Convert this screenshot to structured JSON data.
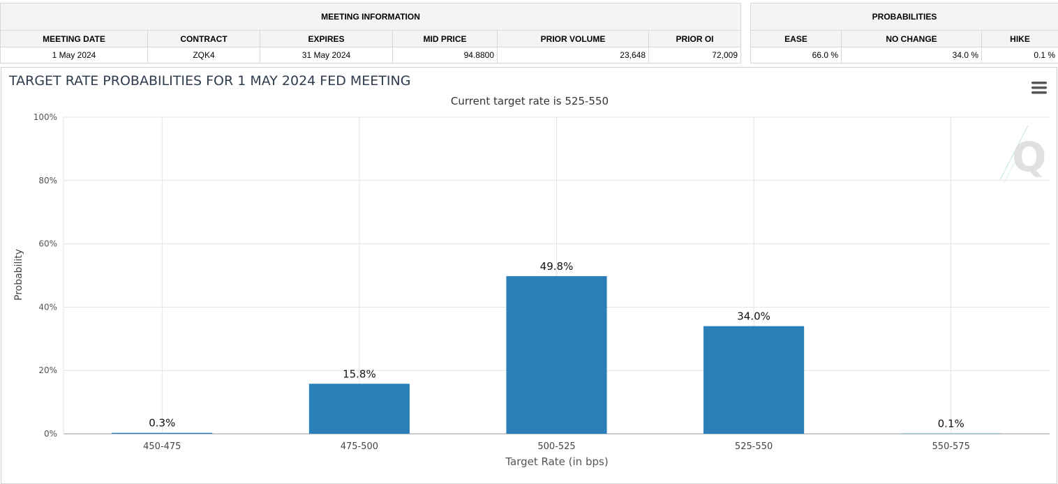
{
  "meeting_info": {
    "title": "MEETING INFORMATION",
    "columns": [
      "MEETING DATE",
      "CONTRACT",
      "EXPIRES",
      "MID PRICE",
      "PRIOR VOLUME",
      "PRIOR OI"
    ],
    "values": [
      "1 May 2024",
      "ZQK4",
      "31 May 2024",
      "94.8800",
      "23,648",
      "72,009"
    ]
  },
  "probabilities": {
    "title": "PROBABILITIES",
    "columns": [
      "EASE",
      "NO CHANGE",
      "HIKE"
    ],
    "values": [
      "66.0 %",
      "34.0 %",
      "0.1 %"
    ]
  },
  "menu_icon": "hamburger-menu-icon",
  "watermark_icon": "q-logo-icon",
  "chart_data": {
    "type": "bar",
    "title": "TARGET RATE PROBABILITIES FOR 1 MAY 2024 FED MEETING",
    "subtitle": "Current target rate is 525-550",
    "xlabel": "Target Rate (in bps)",
    "ylabel": "Probability",
    "categories": [
      "450-475",
      "475-500",
      "500-525",
      "525-550",
      "550-575"
    ],
    "values": [
      0.3,
      15.8,
      49.8,
      34.0,
      0.1
    ],
    "data_labels": [
      "0.3%",
      "15.8%",
      "49.8%",
      "34.0%",
      "0.1%"
    ],
    "ylim": [
      0,
      100
    ],
    "yticks": [
      0,
      20,
      40,
      60,
      80,
      100
    ],
    "ytick_labels": [
      "0%",
      "20%",
      "40%",
      "60%",
      "80%",
      "100%"
    ],
    "grid": true,
    "bar_color": "#2a7fb8"
  }
}
